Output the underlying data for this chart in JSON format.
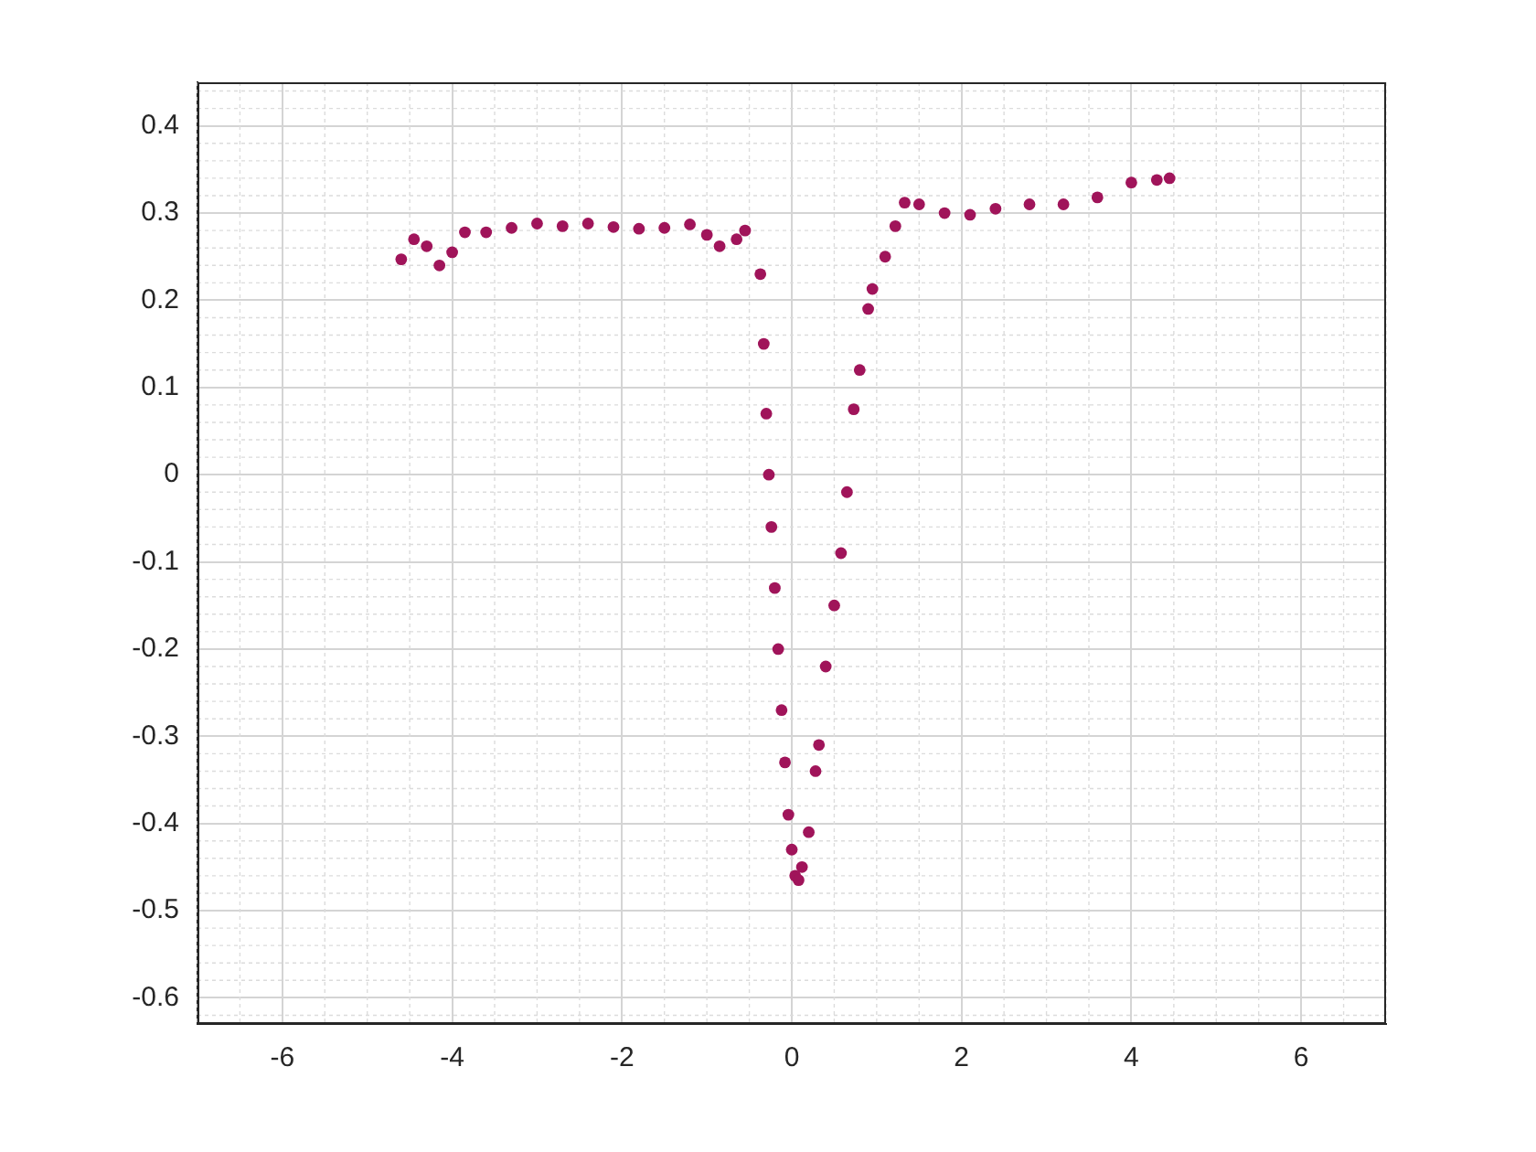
{
  "chart_data": {
    "type": "scatter",
    "marker": "circle",
    "grid": true,
    "xlim": [
      -7,
      7
    ],
    "xticks": [
      -6,
      -4,
      -2,
      0,
      2,
      4,
      6
    ],
    "ylim": [
      -0.63,
      0.45
    ],
    "yticks": [
      -0.6,
      -0.5,
      -0.4,
      -0.3,
      -0.2,
      -0.1,
      0,
      0.1,
      0.2,
      0.3,
      0.4
    ],
    "series": [
      {
        "color": "#a0145a",
        "x": [
          -4.6,
          -4.45,
          -4.3,
          -4.15,
          -4.0,
          -3.85,
          -3.6,
          -3.3,
          -3.0,
          -2.7,
          -2.4,
          -2.1,
          -1.8,
          -1.5,
          -1.2,
          -1.0,
          -0.85,
          -0.65,
          -0.55,
          -0.37,
          -0.33,
          -0.3,
          -0.27,
          -0.24,
          -0.2,
          -0.16,
          -0.12,
          -0.08,
          -0.04,
          0.0,
          0.04,
          0.08,
          0.12,
          0.2,
          0.28,
          0.32,
          0.4,
          0.5,
          0.58,
          0.65,
          0.73,
          0.8,
          0.9,
          0.95,
          1.1,
          1.22,
          1.33,
          1.5,
          1.8,
          2.1,
          2.4,
          2.8,
          3.2,
          3.6,
          4.0,
          4.3,
          4.45
        ],
        "values": [
          0.247,
          0.27,
          0.262,
          0.24,
          0.255,
          0.278,
          0.278,
          0.283,
          0.288,
          0.285,
          0.288,
          0.284,
          0.282,
          0.283,
          0.287,
          0.275,
          0.262,
          0.27,
          0.28,
          0.23,
          0.15,
          0.07,
          0.0,
          -0.06,
          -0.13,
          -0.2,
          -0.27,
          -0.33,
          -0.39,
          -0.43,
          -0.46,
          -0.465,
          -0.45,
          -0.41,
          -0.34,
          -0.31,
          -0.22,
          -0.15,
          -0.09,
          -0.02,
          0.075,
          0.12,
          0.19,
          0.213,
          0.25,
          0.285,
          0.312,
          0.31,
          0.3,
          0.298,
          0.305,
          0.31,
          0.31,
          0.318,
          0.335,
          0.338,
          0.34
        ]
      }
    ]
  }
}
